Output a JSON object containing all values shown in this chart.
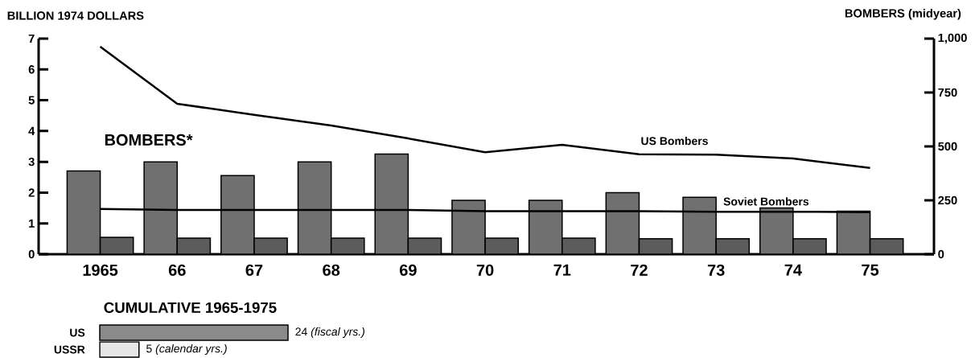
{
  "chart_data": [
    {
      "type": "bar",
      "title": "BOMBERS*",
      "ylabel": "BILLION 1974 DOLLARS",
      "y2label": "BOMBERS   (midyear)",
      "categories": [
        "1965",
        "66",
        "67",
        "68",
        "69",
        "70",
        "71",
        "72",
        "73",
        "74",
        "75"
      ],
      "ylim": [
        0,
        7
      ],
      "yticks": [
        0,
        1,
        2,
        3,
        4,
        5,
        6,
        7
      ],
      "y2lim": [
        0,
        1000
      ],
      "y2ticks": [
        0,
        250,
        500,
        750,
        {
          "value": 1000,
          "label": "1,000"
        }
      ],
      "series": [
        {
          "color": "#707070",
          "values": [
            2.7,
            3.0,
            2.55,
            3.0,
            3.25,
            1.75,
            1.75,
            2.0,
            1.85,
            1.5,
            1.4
          ]
        },
        {
          "color": "#5c5c5c",
          "values": [
            0.55,
            0.52,
            0.52,
            0.52,
            0.52,
            0.52,
            0.52,
            0.5,
            0.5,
            0.5,
            0.5
          ]
        },
        {
          "name": "US Bombers",
          "type": "line",
          "axis": "y2",
          "color": "#000000",
          "values": [
            963,
            698,
            646,
            597,
            537,
            473,
            507,
            464,
            462,
            444,
            400
          ]
        },
        {
          "name": "Soviet Bombers",
          "type": "line",
          "axis": "y2",
          "color": "#000000",
          "values": [
            210,
            205,
            205,
            205,
            205,
            200,
            200,
            200,
            197,
            197,
            195
          ]
        }
      ]
    },
    {
      "type": "bar",
      "orientation": "horizontal",
      "title": "CUMULATIVE 1965-1975",
      "categories": [
        "US",
        "USSR"
      ],
      "values": [
        24,
        5
      ],
      "colors": [
        "#8a8a8a",
        "#e6e6e6"
      ],
      "value_labels": [
        "24 *(fiscal yrs.)*",
        "5 *(calendar yrs.)*"
      ]
    }
  ]
}
